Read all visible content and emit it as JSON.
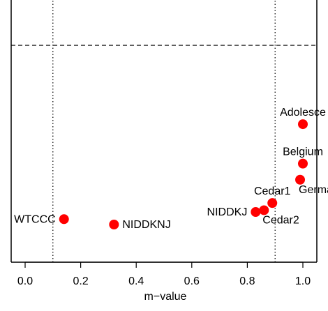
{
  "chart_data": {
    "type": "scatter",
    "xlabel": "m−value",
    "ylabel": "",
    "xlim": [
      -0.06,
      1.04
    ],
    "ylim": [
      -0.29,
      1.29
    ],
    "x_ticks": [
      "0.0",
      "0.2",
      "0.4",
      "0.6",
      "0.8",
      "1.0"
    ],
    "x_tick_values": [
      0.0,
      0.2,
      0.4,
      0.6,
      0.8,
      1.0
    ],
    "vlines": [
      0.1,
      0.9
    ],
    "hline": 1.0,
    "grid": false,
    "point_color": "#ff0000",
    "points": [
      {
        "label": "WTCCC",
        "x": 0.14,
        "y": 0.03,
        "label_side": "left"
      },
      {
        "label": "NIDDKNJ",
        "x": 0.32,
        "y": 0.0,
        "label_side": "right"
      },
      {
        "label": "NIDDKJ",
        "x": 0.83,
        "y": 0.07,
        "label_side": "left"
      },
      {
        "label": "Cedar2",
        "x": 0.86,
        "y": 0.08,
        "label_side": "below-right"
      },
      {
        "label": "Cedar1",
        "x": 0.89,
        "y": 0.12,
        "label_side": "above"
      },
      {
        "label": "Germany",
        "x": 0.99,
        "y": 0.25,
        "label_side": "below-right"
      },
      {
        "label": "Belgium",
        "x": 1.0,
        "y": 0.34,
        "label_side": "above"
      },
      {
        "label": "Adolesce",
        "x": 1.0,
        "y": 0.56,
        "label_side": "above"
      }
    ]
  }
}
